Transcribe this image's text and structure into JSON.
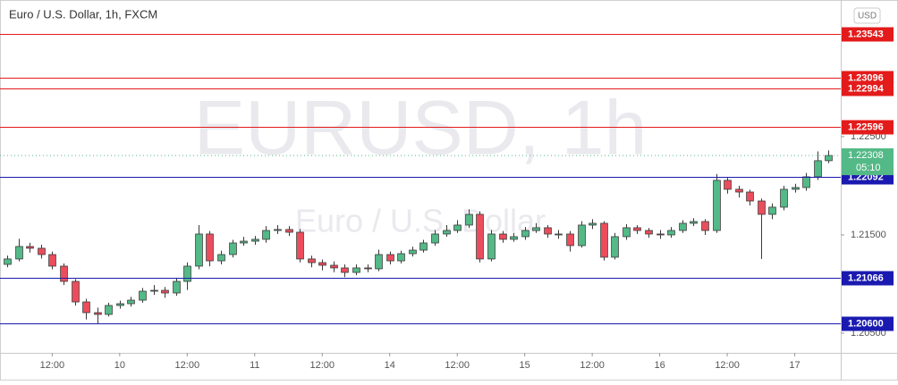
{
  "chart_data": {
    "type": "candlestick",
    "title": "Euro / U.S. Dollar, 1h, FXCM",
    "watermark": "EURUSD, 1h",
    "watermark_sub": "Euro / U.S. Dollar",
    "currency": "USD",
    "up_color": "#53b987",
    "down_color": "#eb4d5c",
    "open": [
      1.212,
      1.21255,
      1.21382,
      1.21364,
      1.213,
      1.21182,
      1.21027,
      1.20818,
      1.20709,
      1.20691,
      1.20782,
      1.208,
      1.20836,
      1.20927,
      1.20936,
      1.20909,
      1.21027,
      1.21182,
      1.21509,
      1.21236,
      1.213,
      1.21418,
      1.21436,
      1.21455,
      1.21545,
      1.21555,
      1.21527,
      1.21255,
      1.21218,
      1.21191,
      1.21164,
      1.21118,
      1.21164,
      1.21155,
      1.213,
      1.21236,
      1.21309,
      1.21345,
      1.21418,
      1.21509,
      1.21545,
      1.216,
      1.21709,
      1.21255,
      1.21509,
      1.21455,
      1.21482,
      1.21545,
      1.21573,
      1.21509,
      1.21509,
      1.21391,
      1.216,
      1.21618,
      1.21273,
      1.21482,
      1.21573,
      1.21545,
      1.21509,
      1.215,
      1.21545,
      1.21618,
      1.21636,
      1.21545,
      1.22055,
      1.21964,
      1.21936,
      1.21845,
      1.21709,
      1.21782,
      1.21964,
      1.21982,
      1.22091,
      1.22255
    ],
    "high": [
      1.2129,
      1.2146,
      1.2142,
      1.214,
      1.2133,
      1.2121,
      1.2105,
      1.2085,
      1.2076,
      1.2081,
      1.2083,
      1.2087,
      1.2096,
      1.2099,
      1.2097,
      1.2106,
      1.2122,
      1.216,
      1.2154,
      1.2134,
      1.2145,
      1.2148,
      1.2149,
      1.2159,
      1.216,
      1.2159,
      1.2156,
      1.2129,
      1.2125,
      1.2123,
      1.212,
      1.212,
      1.212,
      1.2135,
      1.2133,
      1.2134,
      1.2138,
      1.2145,
      1.2155,
      1.216,
      1.2165,
      1.2176,
      1.2174,
      1.2155,
      1.2154,
      1.2152,
      1.2158,
      1.2162,
      1.216,
      1.2155,
      1.2154,
      1.2164,
      1.2166,
      1.2164,
      1.2152,
      1.2161,
      1.216,
      1.2157,
      1.2155,
      1.2158,
      1.2165,
      1.2167,
      1.2166,
      1.2212,
      1.2208,
      1.22,
      1.2196,
      1.2187,
      1.2182,
      1.22,
      1.2202,
      1.2213,
      1.2235,
      1.2236
    ],
    "low": [
      1.2117,
      1.2123,
      1.2132,
      1.2126,
      1.2115,
      1.2099,
      1.2078,
      1.2064,
      1.206,
      1.2067,
      1.2075,
      1.2077,
      1.2081,
      1.2089,
      1.2086,
      1.2088,
      1.2094,
      1.2115,
      1.2118,
      1.212,
      1.2127,
      1.2139,
      1.214,
      1.2142,
      1.2151,
      1.2149,
      1.2122,
      1.2117,
      1.2114,
      1.2112,
      1.2107,
      1.2109,
      1.2112,
      1.2113,
      1.212,
      1.2121,
      1.2128,
      1.2132,
      1.2139,
      1.2148,
      1.2152,
      1.2157,
      1.2122,
      1.2123,
      1.2142,
      1.2143,
      1.2145,
      1.2152,
      1.2147,
      1.2146,
      1.2133,
      1.2137,
      1.2156,
      1.2124,
      1.2125,
      1.2145,
      1.2151,
      1.2147,
      1.2146,
      1.2147,
      1.2152,
      1.2159,
      1.215,
      1.2152,
      1.2192,
      1.2188,
      1.218,
      1.21255,
      1.2166,
      1.2175,
      1.2193,
      1.2195,
      1.2206,
      1.2223
    ],
    "close": [
      1.21255,
      1.21382,
      1.21364,
      1.213,
      1.21182,
      1.21027,
      1.20818,
      1.20709,
      1.20691,
      1.20782,
      1.208,
      1.20836,
      1.20927,
      1.20936,
      1.20909,
      1.21027,
      1.21182,
      1.21509,
      1.21236,
      1.213,
      1.21418,
      1.21436,
      1.21455,
      1.21545,
      1.21555,
      1.21527,
      1.21255,
      1.21218,
      1.21191,
      1.21164,
      1.21118,
      1.21164,
      1.21155,
      1.213,
      1.21236,
      1.21309,
      1.21345,
      1.21418,
      1.21509,
      1.21545,
      1.216,
      1.21709,
      1.21255,
      1.21509,
      1.21455,
      1.21482,
      1.21545,
      1.21573,
      1.21509,
      1.21509,
      1.21391,
      1.216,
      1.21618,
      1.21273,
      1.21482,
      1.21573,
      1.21545,
      1.21509,
      1.215,
      1.21545,
      1.21618,
      1.21636,
      1.21545,
      1.22055,
      1.21964,
      1.21936,
      1.21845,
      1.21709,
      1.21782,
      1.21964,
      1.21982,
      1.22091,
      1.22255,
      1.22308
    ],
    "xlim": [
      -0.64,
      74.09
    ],
    "xticks": [
      {
        "value": 4,
        "label": "12:00"
      },
      {
        "value": 10,
        "label": "10"
      },
      {
        "value": 16,
        "label": "12:00"
      },
      {
        "value": 22,
        "label": "11"
      },
      {
        "value": 28,
        "label": "12:00"
      },
      {
        "value": 34,
        "label": "14"
      },
      {
        "value": 40,
        "label": "12:00"
      },
      {
        "value": 46,
        "label": "15"
      },
      {
        "value": 52,
        "label": "12:00"
      },
      {
        "value": 58,
        "label": "16"
      },
      {
        "value": 64,
        "label": "12:00"
      },
      {
        "value": 70,
        "label": "17"
      }
    ],
    "ylim": [
      1.203,
      1.2389
    ],
    "yticks": [
      {
        "value": 1.225,
        "label": "1.22500"
      },
      {
        "value": 1.215,
        "label": "1.21500"
      },
      {
        "value": 1.205,
        "label": "1.20500"
      }
    ],
    "levels": [
      {
        "value": 1.23543,
        "label": "1.23543",
        "color": "#e31b1b"
      },
      {
        "value": 1.23096,
        "label": "1.23096",
        "color": "#e31b1b"
      },
      {
        "value": 1.22994,
        "label": "1.22994",
        "color": "#e31b1b"
      },
      {
        "value": 1.22596,
        "label": "1.22596",
        "color": "#e31b1b"
      },
      {
        "value": 1.22092,
        "label": "1.22092",
        "color": "#1a1ab0"
      },
      {
        "value": 1.21066,
        "label": "1.21066",
        "color": "#1a1ab0"
      },
      {
        "value": 1.206,
        "label": "1.20600",
        "color": "#1a1ab0"
      }
    ],
    "last_price": {
      "value": 1.22308,
      "label": "1.22308",
      "countdown": "05:10",
      "color": "#53b987"
    }
  }
}
